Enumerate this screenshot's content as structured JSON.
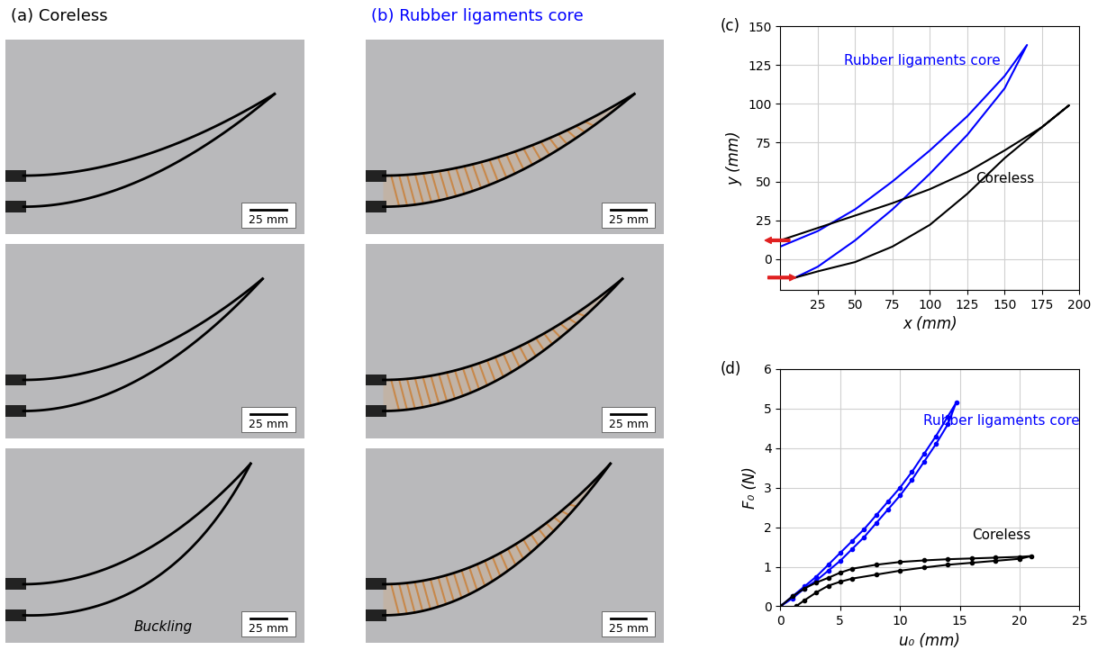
{
  "panels": [
    {
      "label": "(a) Coreless",
      "color": "#000000",
      "photos": [
        {
          "scale_bar": "25 mm"
        },
        {
          "scale_bar": "25 mm"
        },
        {
          "scale_bar": "25 mm",
          "annotation": "Buckling"
        }
      ]
    },
    {
      "label": "(b) Rubber ligaments core",
      "color": "#0000ff",
      "photos": [
        {
          "scale_bar": "25 mm"
        },
        {
          "scale_bar": "25 mm"
        },
        {
          "scale_bar": "25 mm"
        }
      ]
    }
  ],
  "chart_data": [
    {
      "type": "line",
      "title": "(c)",
      "x_label": "x (mm)",
      "y_label": "y (mm)",
      "xlim": [
        0,
        200
      ],
      "ylim": [
        -20,
        150
      ],
      "xticks": [
        25,
        50,
        75,
        100,
        125,
        150,
        175,
        200
      ],
      "yticks": [
        0,
        25,
        50,
        75,
        100,
        125,
        150
      ],
      "grid": true,
      "series": [
        {
          "name": "Rubber ligaments core",
          "color": "#0000ff",
          "x": [
            0,
            25,
            50,
            75,
            100,
            125,
            150,
            165,
            150,
            125,
            100,
            75,
            50,
            25,
            10
          ],
          "values": [
            8,
            18,
            32,
            50,
            70,
            92,
            118,
            138,
            110,
            80,
            55,
            32,
            12,
            -5,
            -12
          ]
        },
        {
          "name": "Coreless",
          "color": "#000000",
          "x": [
            0,
            25,
            50,
            75,
            100,
            125,
            150,
            175,
            193,
            175,
            150,
            125,
            100,
            75,
            50,
            25,
            10
          ],
          "values": [
            12,
            20,
            28,
            36,
            45,
            56,
            70,
            85,
            99,
            85,
            65,
            42,
            22,
            8,
            -2,
            -8,
            -12
          ]
        }
      ]
    },
    {
      "type": "line",
      "title": "(d)",
      "x_label": "u₀ (mm)",
      "y_label": "F₀ (N)",
      "xlim": [
        0,
        25
      ],
      "ylim": [
        0,
        6
      ],
      "xticks": [
        0,
        5,
        10,
        15,
        20,
        25
      ],
      "yticks": [
        0,
        1,
        2,
        3,
        4,
        5,
        6
      ],
      "grid": true,
      "series": [
        {
          "name": "Rubber ligaments core",
          "color": "#0000ff",
          "marker": "o",
          "x": [
            0,
            1,
            2,
            3,
            4,
            5,
            6,
            7,
            8,
            9,
            10,
            11,
            12,
            13,
            14,
            14.7,
            14,
            13,
            12,
            11,
            10,
            9,
            8,
            7,
            6,
            5,
            4,
            3,
            2,
            1,
            0
          ],
          "values": [
            0,
            0.25,
            0.5,
            0.75,
            1.05,
            1.35,
            1.65,
            1.95,
            2.3,
            2.65,
            3.0,
            3.4,
            3.85,
            4.3,
            4.8,
            5.15,
            4.6,
            4.1,
            3.65,
            3.2,
            2.8,
            2.45,
            2.1,
            1.75,
            1.45,
            1.15,
            0.9,
            0.65,
            0.45,
            0.2,
            0
          ]
        },
        {
          "name": "Coreless",
          "color": "#000000",
          "marker": "o",
          "x": [
            0,
            1,
            2,
            3,
            4,
            5,
            6,
            8,
            10,
            12,
            14,
            16,
            18,
            20,
            21,
            20,
            18,
            16,
            14,
            12,
            10,
            8,
            6,
            5,
            4,
            3,
            2,
            1.3
          ],
          "values": [
            0,
            0.25,
            0.45,
            0.6,
            0.72,
            0.85,
            0.95,
            1.05,
            1.12,
            1.16,
            1.19,
            1.21,
            1.23,
            1.25,
            1.27,
            1.2,
            1.15,
            1.1,
            1.05,
            0.98,
            0.9,
            0.8,
            0.7,
            0.62,
            0.52,
            0.35,
            0.15,
            0
          ]
        }
      ]
    }
  ]
}
